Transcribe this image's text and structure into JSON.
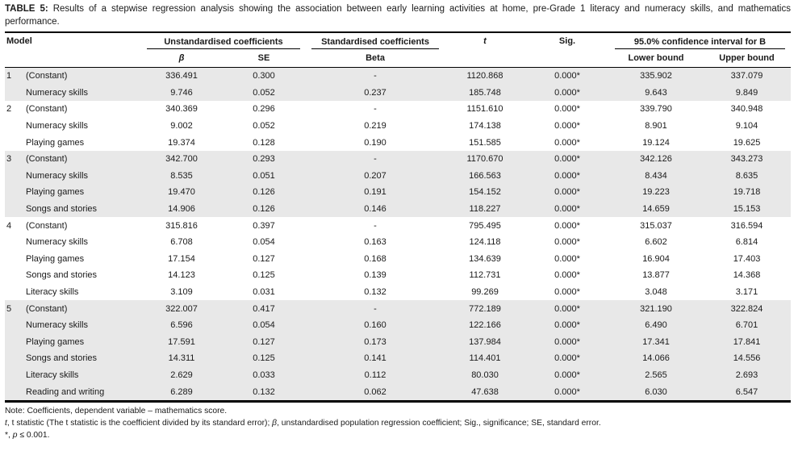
{
  "title": {
    "label": "TABLE 5:",
    "text": " Results of a stepwise regression analysis showing the association between early learning activities at home, pre-Grade 1 literacy and numeracy skills, and mathematics performance."
  },
  "header": {
    "model": "Model",
    "unstd_group": "Unstandardised coefficients",
    "std_group": "Standardised coefficients",
    "t": "t",
    "sig": "Sig.",
    "ci_group": "95.0% confidence interval for B",
    "beta_symbol": "β",
    "se": "SE",
    "beta": "Beta",
    "lower": "Lower bound",
    "upper": "Upper bound"
  },
  "rows": [
    {
      "model": "1",
      "label": "(Constant)",
      "b": "336.491",
      "se": "0.300",
      "beta": "-",
      "t": "1120.868",
      "sig": "0.000*",
      "lower": "335.902",
      "upper": "337.079",
      "shaded": true
    },
    {
      "model": "",
      "label": "Numeracy skills",
      "b": "9.746",
      "se": "0.052",
      "beta": "0.237",
      "t": "185.748",
      "sig": "0.000*",
      "lower": "9.643",
      "upper": "9.849",
      "shaded": true
    },
    {
      "model": "2",
      "label": "(Constant)",
      "b": "340.369",
      "se": "0.296",
      "beta": "-",
      "t": "1151.610",
      "sig": "0.000*",
      "lower": "339.790",
      "upper": "340.948",
      "shaded": false
    },
    {
      "model": "",
      "label": "Numeracy skills",
      "b": "9.002",
      "se": "0.052",
      "beta": "0.219",
      "t": "174.138",
      "sig": "0.000*",
      "lower": "8.901",
      "upper": "9.104",
      "shaded": false
    },
    {
      "model": "",
      "label": "Playing games",
      "b": "19.374",
      "se": "0.128",
      "beta": "0.190",
      "t": "151.585",
      "sig": "0.000*",
      "lower": "19.124",
      "upper": "19.625",
      "shaded": false
    },
    {
      "model": "3",
      "label": "(Constant)",
      "b": "342.700",
      "se": "0.293",
      "beta": "-",
      "t": "1170.670",
      "sig": "0.000*",
      "lower": "342.126",
      "upper": "343.273",
      "shaded": true
    },
    {
      "model": "",
      "label": "Numeracy skills",
      "b": "8.535",
      "se": "0.051",
      "beta": "0.207",
      "t": "166.563",
      "sig": "0.000*",
      "lower": "8.434",
      "upper": "8.635",
      "shaded": true
    },
    {
      "model": "",
      "label": "Playing games",
      "b": "19.470",
      "se": "0.126",
      "beta": "0.191",
      "t": "154.152",
      "sig": "0.000*",
      "lower": "19.223",
      "upper": "19.718",
      "shaded": true
    },
    {
      "model": "",
      "label": "Songs and stories",
      "b": "14.906",
      "se": "0.126",
      "beta": "0.146",
      "t": "118.227",
      "sig": "0.000*",
      "lower": "14.659",
      "upper": "15.153",
      "shaded": true
    },
    {
      "model": "4",
      "label": "(Constant)",
      "b": "315.816",
      "se": "0.397",
      "beta": "-",
      "t": "795.495",
      "sig": "0.000*",
      "lower": "315.037",
      "upper": "316.594",
      "shaded": false
    },
    {
      "model": "",
      "label": "Numeracy skills",
      "b": "6.708",
      "se": "0.054",
      "beta": "0.163",
      "t": "124.118",
      "sig": "0.000*",
      "lower": "6.602",
      "upper": "6.814",
      "shaded": false
    },
    {
      "model": "",
      "label": "Playing games",
      "b": "17.154",
      "se": "0.127",
      "beta": "0.168",
      "t": "134.639",
      "sig": "0.000*",
      "lower": "16.904",
      "upper": "17.403",
      "shaded": false
    },
    {
      "model": "",
      "label": "Songs and stories",
      "b": "14.123",
      "se": "0.125",
      "beta": "0.139",
      "t": "112.731",
      "sig": "0.000*",
      "lower": "13.877",
      "upper": "14.368",
      "shaded": false
    },
    {
      "model": "",
      "label": "Literacy skills",
      "b": "3.109",
      "se": "0.031",
      "beta": "0.132",
      "t": "99.269",
      "sig": "0.000*",
      "lower": "3.048",
      "upper": "3.171",
      "shaded": false
    },
    {
      "model": "5",
      "label": "(Constant)",
      "b": "322.007",
      "se": "0.417",
      "beta": "-",
      "t": "772.189",
      "sig": "0.000*",
      "lower": "321.190",
      "upper": "322.824",
      "shaded": true
    },
    {
      "model": "",
      "label": "Numeracy skills",
      "b": "6.596",
      "se": "0.054",
      "beta": "0.160",
      "t": "122.166",
      "sig": "0.000*",
      "lower": "6.490",
      "upper": "6.701",
      "shaded": true
    },
    {
      "model": "",
      "label": "Playing games",
      "b": "17.591",
      "se": "0.127",
      "beta": "0.173",
      "t": "137.984",
      "sig": "0.000*",
      "lower": "17.341",
      "upper": "17.841",
      "shaded": true
    },
    {
      "model": "",
      "label": "Songs and stories",
      "b": "14.311",
      "se": "0.125",
      "beta": "0.141",
      "t": "114.401",
      "sig": "0.000*",
      "lower": "14.066",
      "upper": "14.556",
      "shaded": true
    },
    {
      "model": "",
      "label": "Literacy skills",
      "b": "2.629",
      "se": "0.033",
      "beta": "0.112",
      "t": "80.030",
      "sig": "0.000*",
      "lower": "2.565",
      "upper": "2.693",
      "shaded": true
    },
    {
      "model": "",
      "label": "Reading and writing",
      "b": "6.289",
      "se": "0.132",
      "beta": "0.062",
      "t": "47.638",
      "sig": "0.000*",
      "lower": "6.030",
      "upper": "6.547",
      "shaded": true
    }
  ],
  "notes": {
    "note1": "Note: Coefficients, dependent variable – mathematics score.",
    "note2": {
      "t_italic": "t",
      "seg1": ", t statistic (The t statistic is the coefficient divided by its standard error); ",
      "beta_italic": "β",
      "seg2": ", unstandardised population regression coefficient; Sig., significance; SE, standard error."
    },
    "note3": {
      "seg1": "*, ",
      "p_italic": "p",
      "seg2": " ≤ 0.001."
    }
  },
  "colors": {
    "row_shade": "#e8e8e8",
    "rule": "#000000",
    "text": "#1a1a1a"
  }
}
